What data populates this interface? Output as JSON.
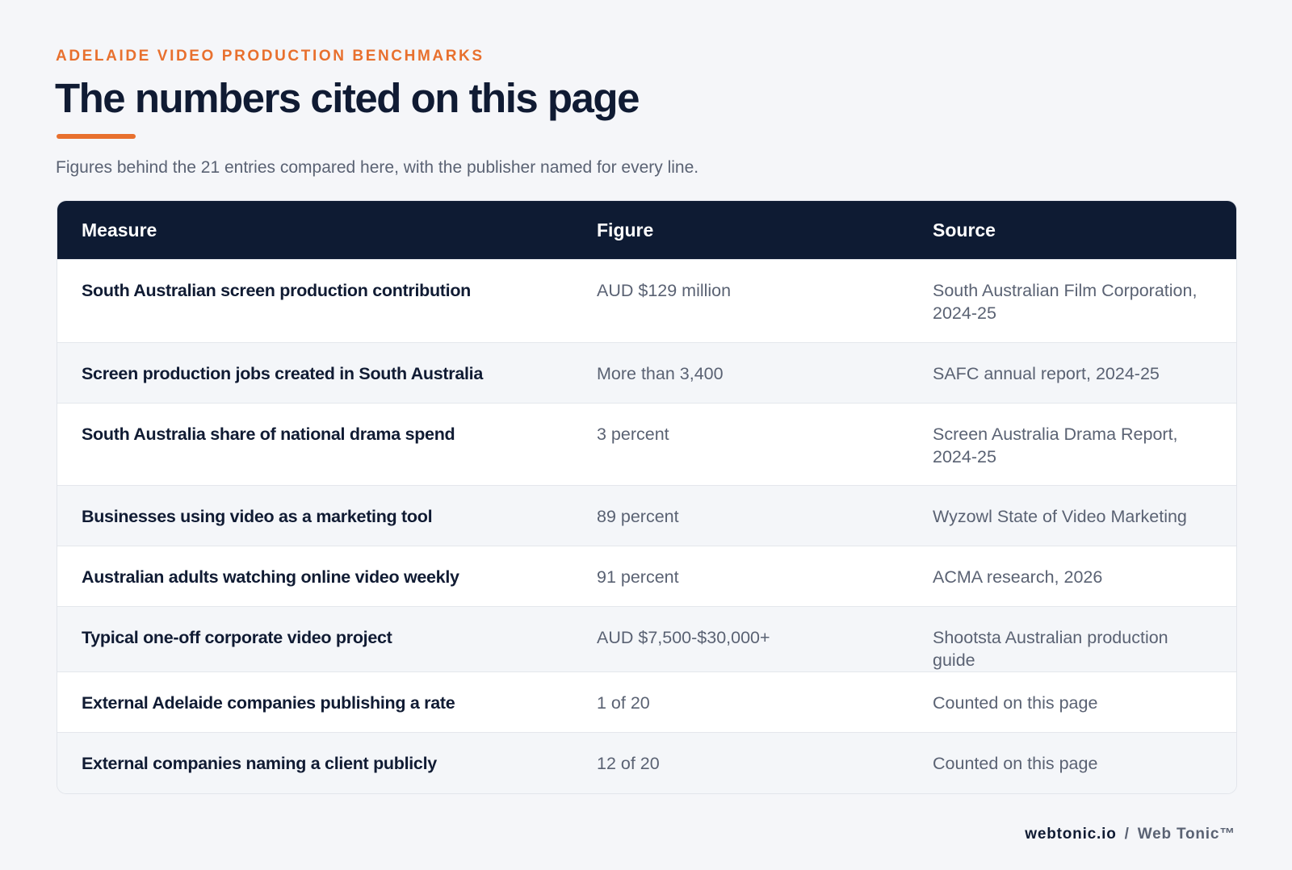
{
  "header": {
    "eyebrow": "ADELAIDE VIDEO PRODUCTION BENCHMARKS",
    "title": "The numbers cited on this page",
    "subtitle": "Figures behind the 21 entries compared here, with the publisher named for every line."
  },
  "table": {
    "columns": [
      "Measure",
      "Figure",
      "Source"
    ],
    "rows": [
      [
        "South Australian screen production contribution",
        "AUD $129 million",
        "South Australian Film Corporation, 2024-25"
      ],
      [
        "Screen production jobs created in South Australia",
        "More than 3,400",
        "SAFC annual report, 2024-25"
      ],
      [
        "South Australia share of national drama spend",
        "3 percent",
        "Screen Australia Drama Report, 2024-25"
      ],
      [
        "Businesses using video as a marketing tool",
        "89 percent",
        "Wyzowl State of Video Marketing"
      ],
      [
        "Australian adults watching online video weekly",
        "91 percent",
        "ACMA research, 2026"
      ],
      [
        "Typical one-off corporate video project",
        "AUD $7,500-$30,000+",
        "Shootsta Australian production guide"
      ],
      [
        "External Adelaide companies publishing a rate",
        "1 of 20",
        "Counted on this page"
      ],
      [
        "External companies naming a client publicly",
        "12 of 20",
        "Counted on this page"
      ]
    ]
  },
  "footer": {
    "site": "webtonic.io",
    "separator": "/",
    "brand": "Web Tonic™"
  }
}
